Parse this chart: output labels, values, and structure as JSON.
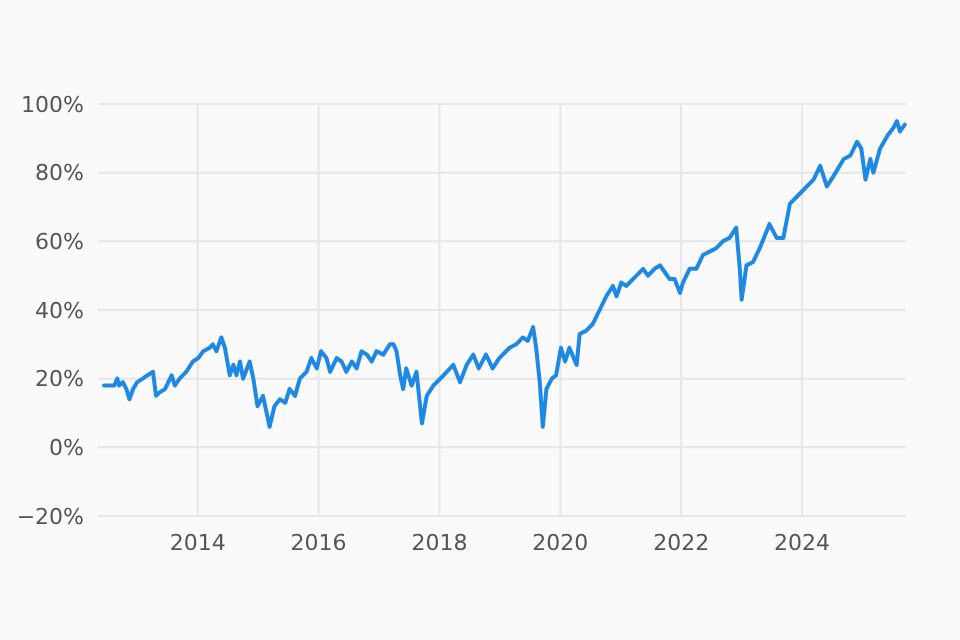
{
  "chart_data": {
    "type": "line",
    "grid": true,
    "xlim": [
      2012.35,
      2025.72
    ],
    "ylim": [
      -20,
      100
    ],
    "xticks": [
      2014,
      2016,
      2018,
      2020,
      2022,
      2024
    ],
    "yticks": [
      {
        "value": -20,
        "label": "−20%"
      },
      {
        "value": 0,
        "label": "0%"
      },
      {
        "value": 20,
        "label": "20%"
      },
      {
        "value": 40,
        "label": "40%"
      },
      {
        "value": 60,
        "label": "60%"
      },
      {
        "value": 80,
        "label": "80%"
      },
      {
        "value": 100,
        "label": "100%"
      }
    ],
    "series": [
      {
        "color": "#1e88e5",
        "x": [
          2012.45,
          2012.54,
          2012.62,
          2012.67,
          2012.7,
          2012.76,
          2012.82,
          2012.87,
          2012.93,
          2013.0,
          2013.09,
          2013.17,
          2013.26,
          2013.31,
          2013.37,
          2013.46,
          2013.57,
          2013.62,
          2013.7,
          2013.81,
          2013.92,
          2014.01,
          2014.09,
          2014.2,
          2014.25,
          2014.31,
          2014.39,
          2014.45,
          2014.53,
          2014.59,
          2014.64,
          2014.7,
          2014.75,
          2014.86,
          2014.92,
          2014.99,
          2015.08,
          2015.19,
          2015.27,
          2015.36,
          2015.45,
          2015.52,
          2015.61,
          2015.69,
          2015.8,
          2015.88,
          2015.97,
          2016.04,
          2016.13,
          2016.19,
          2016.3,
          2016.38,
          2016.46,
          2016.55,
          2016.63,
          2016.71,
          2016.8,
          2016.88,
          2016.96,
          2017.07,
          2017.18,
          2017.24,
          2017.29,
          2017.35,
          2017.4,
          2017.45,
          2017.54,
          2017.62,
          2017.71,
          2017.79,
          2017.9,
          2018.07,
          2018.23,
          2018.34,
          2018.45,
          2018.56,
          2018.65,
          2018.77,
          2018.88,
          2018.99,
          2019.16,
          2019.27,
          2019.38,
          2019.46,
          2019.55,
          2019.6,
          2019.66,
          2019.71,
          2019.77,
          2019.86,
          2019.93,
          2020.01,
          2020.08,
          2020.15,
          2020.27,
          2020.32,
          2020.43,
          2020.54,
          2020.65,
          2020.76,
          2020.87,
          2020.93,
          2021.01,
          2021.09,
          2021.26,
          2021.37,
          2021.45,
          2021.56,
          2021.65,
          2021.73,
          2021.81,
          2021.89,
          2021.98,
          2022.03,
          2022.14,
          2022.25,
          2022.36,
          2022.47,
          2022.58,
          2022.69,
          2022.8,
          2022.91,
          2022.97,
          2023.0,
          2023.08,
          2023.19,
          2023.3,
          2023.46,
          2023.58,
          2023.69,
          2023.8,
          2023.97,
          2024.08,
          2024.19,
          2024.3,
          2024.41,
          2024.52,
          2024.69,
          2024.8,
          2024.91,
          2024.98,
          2025.05,
          2025.13,
          2025.18,
          2025.29,
          2025.42,
          2025.51,
          2025.57,
          2025.62,
          2025.7
        ],
        "values": [
          18,
          18,
          18,
          20,
          18,
          19,
          17,
          14,
          17,
          19,
          20,
          21,
          22,
          15,
          16,
          17,
          21,
          18,
          20,
          22,
          25,
          26,
          28,
          29,
          30,
          28,
          32,
          29,
          21,
          24,
          21,
          25,
          20,
          25,
          20,
          12,
          15,
          6,
          12,
          14,
          13,
          17,
          15,
          20,
          22,
          26,
          23,
          28,
          26,
          22,
          26,
          25,
          22,
          25,
          23,
          28,
          27,
          25,
          28,
          27,
          30,
          30,
          28,
          21,
          17,
          23,
          18,
          22,
          7,
          15,
          18,
          21,
          24,
          19,
          24,
          27,
          23,
          27,
          23,
          26,
          29,
          30,
          32,
          31,
          35,
          29,
          19,
          6,
          17,
          20,
          21,
          29,
          25,
          29,
          24,
          33,
          34,
          36,
          40,
          44,
          47,
          44,
          48,
          47,
          50,
          52,
          50,
          52,
          53,
          51,
          49,
          49,
          45,
          48,
          52,
          52,
          56,
          57,
          58,
          60,
          61,
          64,
          52,
          43,
          53,
          54,
          58,
          65,
          61,
          61,
          71,
          74,
          76,
          78,
          82,
          76,
          79,
          84,
          85,
          89,
          87,
          78,
          84,
          80,
          87,
          91,
          93,
          95,
          92,
          94
        ]
      }
    ]
  }
}
